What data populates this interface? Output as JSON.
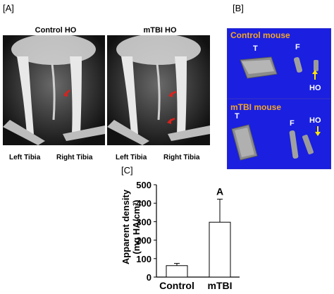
{
  "panels": {
    "A": {
      "label": "[A]",
      "control_title": "Control HO",
      "mtbi_title": "mTBI HO",
      "left_tibia": "Left Tibia",
      "right_tibia": "Right Tibia"
    },
    "B": {
      "label": "[B]",
      "control_title": "Control mouse",
      "mtbi_title": "mTBI mouse",
      "tag_T": "T",
      "tag_F": "F",
      "tag_HO": "HO",
      "arrow_color": "#ffe600"
    },
    "C": {
      "label": "[C]"
    }
  },
  "colors": {
    "ct_background": "#1a1fe0",
    "ct_title": "#f5a623",
    "ho_arrow": "#e0201a"
  },
  "chart_data": {
    "type": "bar",
    "categories": [
      "Control",
      "mTBI"
    ],
    "values": [
      62,
      297
    ],
    "errors": [
      12,
      125
    ],
    "annotations": [
      "",
      "A"
    ],
    "ylabel_line1": "Apparent density",
    "ylabel_line2": "(mg HA/cm³)",
    "ylim": [
      0,
      500
    ],
    "yticks": [
      "0",
      "100",
      "200",
      "300",
      "400",
      "500"
    ]
  }
}
